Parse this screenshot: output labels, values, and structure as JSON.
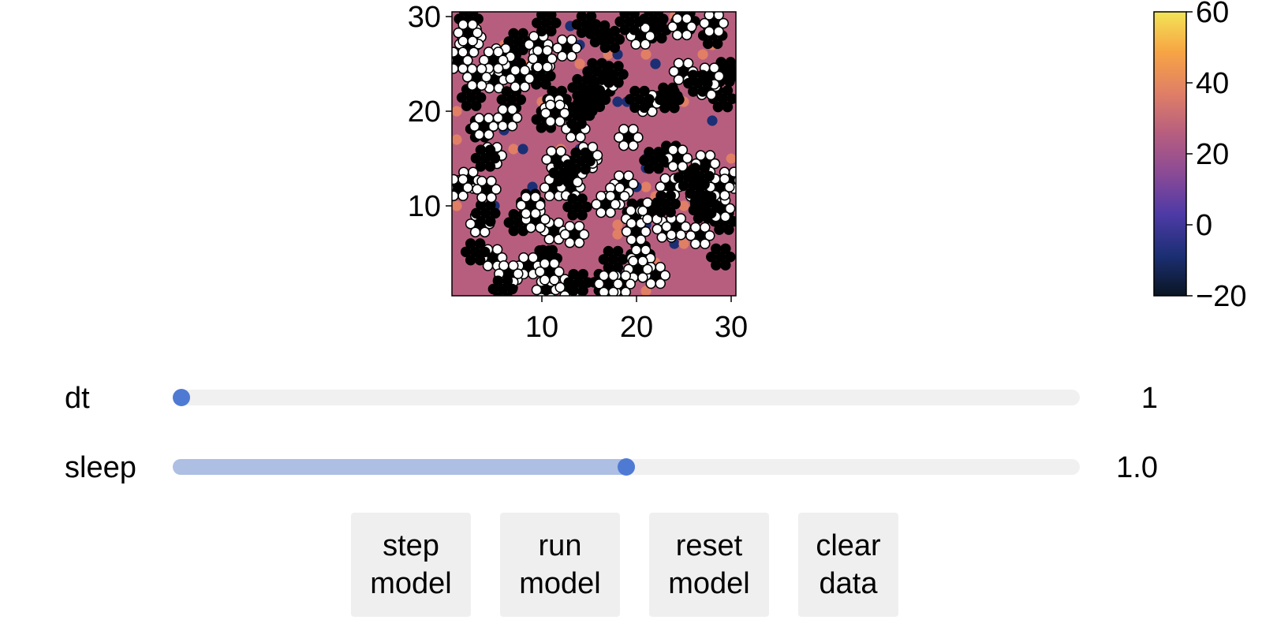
{
  "chart_data": [
    {
      "type": "heatmap",
      "title": "",
      "xlabel": "",
      "ylabel": "",
      "xlim": [
        0.5,
        30.5
      ],
      "ylim": [
        0.5,
        30.5
      ],
      "x_ticks": [
        "10",
        "20",
        "30"
      ],
      "y_ticks": [
        "10",
        "20",
        "30"
      ],
      "grid": false,
      "background_color": "#b75e7f",
      "agent_colors": {
        "light": "#ffffff",
        "dark": "#000000",
        "stroke": "#000000"
      },
      "cell_highlight_colors": [
        "#1c2f74",
        "#e07f66"
      ]
    },
    {
      "type": "colorbar",
      "range": [
        -20,
        60
      ],
      "ticks": [
        "60",
        "40",
        "20",
        "0",
        "−20"
      ],
      "colormap": [
        "#0a1522",
        "#1c2f74",
        "#4d3aa6",
        "#8a4a96",
        "#b75e7f",
        "#e07f66",
        "#f7a444",
        "#f2e456"
      ]
    }
  ],
  "controls": {
    "sliders": [
      {
        "label": "dt",
        "value_text": "1",
        "fraction": 0.0
      },
      {
        "label": "sleep",
        "value_text": "1.0",
        "fraction": 0.5
      }
    ],
    "buttons": [
      {
        "line1": "step",
        "line2": "model"
      },
      {
        "line1": "run",
        "line2": "model"
      },
      {
        "line1": "reset",
        "line2": "model"
      },
      {
        "line1": "clear",
        "line2": "data"
      }
    ]
  }
}
